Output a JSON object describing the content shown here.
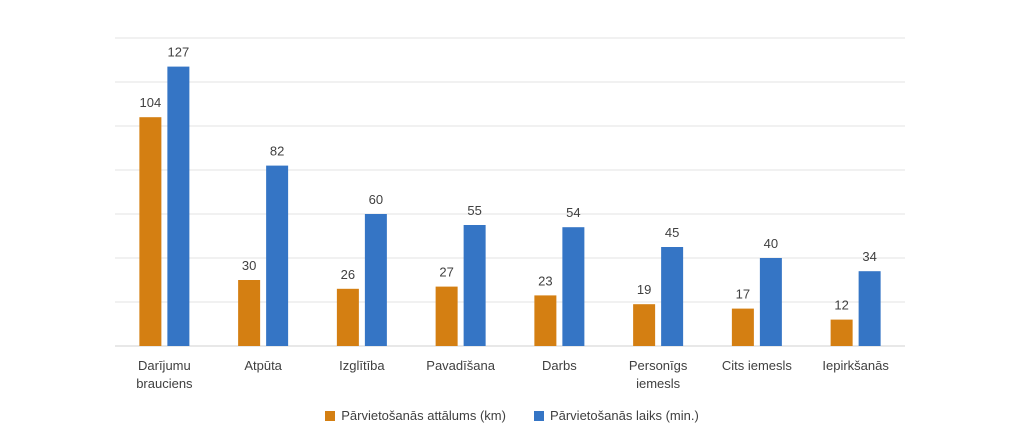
{
  "chart_data": {
    "type": "bar",
    "title": "",
    "xlabel": "",
    "ylabel": "",
    "ylim": [
      0,
      140
    ],
    "grid": true,
    "legend_position": "bottom",
    "categories": [
      [
        "Darījumu",
        "brauciens"
      ],
      [
        "Atpūta"
      ],
      [
        "Izglītība"
      ],
      [
        "Pavadīšana"
      ],
      [
        "Darbs"
      ],
      [
        "Personīgs",
        "iemesls"
      ],
      [
        "Cits iemesls"
      ],
      [
        "Iepirkšanās"
      ]
    ],
    "series": [
      {
        "name": "Pārvietošanās attālums (km)",
        "color": "#D47F12",
        "values": [
          104,
          30,
          26,
          27,
          23,
          19,
          17,
          12
        ]
      },
      {
        "name": "Pārvietošanās laiks (min.)",
        "color": "#3575C5",
        "values": [
          127,
          82,
          60,
          55,
          54,
          45,
          40,
          34
        ]
      }
    ]
  }
}
